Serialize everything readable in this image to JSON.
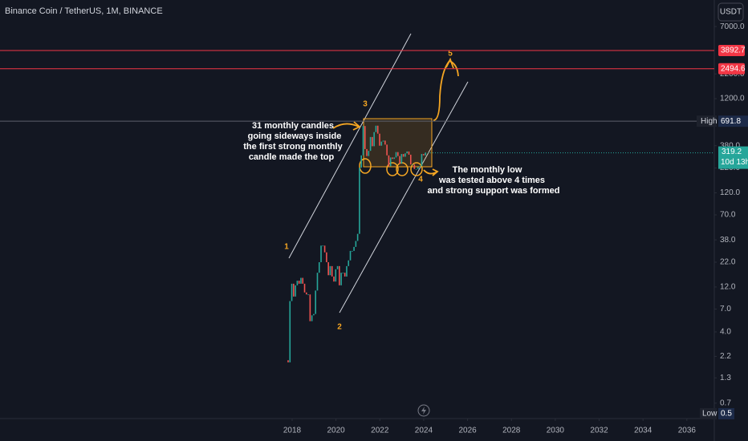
{
  "header": {
    "symbol": "Binance Coin / TetherUS, 1M, BINANCE",
    "currency": "USDT"
  },
  "chart_data": {
    "type": "candlestick",
    "log_scale": true,
    "grid": false,
    "up_color": "#26a69a",
    "down_color": "#ef5350",
    "open": [
      2.0,
      1.9,
      8.5,
      13,
      9.5,
      12.5,
      14,
      13,
      15,
      13,
      10.5,
      10,
      10,
      5.2,
      6,
      6.2,
      11,
      17,
      22,
      33,
      33,
      28,
      22,
      16,
      20,
      15.5,
      13.7,
      18.5,
      20,
      12.5,
      17,
      17,
      15.5,
      20,
      23,
      29,
      29,
      32,
      37,
      44,
      222,
      300,
      615,
      350,
      295,
      335,
      470,
      375,
      530,
      620,
      510,
      380,
      420,
      430,
      390,
      300,
      230,
      285,
      275,
      285,
      325,
      295,
      245,
      310,
      290,
      315,
      330,
      305,
      240,
      240,
      215,
      215,
      225,
      230,
      310,
      300
    ],
    "high": {
      "name": "High",
      "value": 691.8,
      "label": "691.8"
    },
    "low": {
      "name": "Low",
      "value": 0.5,
      "label": "0.5"
    },
    "close": [
      1.9,
      8.5,
      13,
      9.5,
      12.5,
      14,
      13,
      15,
      13,
      10.5,
      10,
      10,
      5.2,
      6,
      6.2,
      11,
      17,
      22,
      33,
      33,
      28,
      22,
      16,
      20,
      15.5,
      13.7,
      18.5,
      20,
      12.5,
      17,
      17,
      15.5,
      20,
      23,
      29,
      29,
      32,
      37,
      44,
      222,
      300,
      615,
      350,
      295,
      335,
      470,
      375,
      530,
      620,
      510,
      380,
      420,
      430,
      390,
      300,
      230,
      285,
      275,
      285,
      325,
      295,
      245,
      310,
      290,
      315,
      330,
      305,
      240,
      240,
      215,
      215,
      225,
      230,
      310,
      300,
      319.2
    ],
    "ylim": [
      0.5,
      13400
    ],
    "yticks": [
      {
        "value": 7000,
        "label": "7000.0"
      },
      {
        "value": 2200,
        "label": "2200.0"
      },
      {
        "value": 1200,
        "label": "1200.0"
      },
      {
        "value": 380,
        "label": "380.0"
      },
      {
        "value": 220,
        "label": "220.0"
      },
      {
        "value": 120,
        "label": "120.0"
      },
      {
        "value": 70,
        "label": "70.0"
      },
      {
        "value": 38,
        "label": "38.0"
      },
      {
        "value": 22,
        "label": "22.0"
      },
      {
        "value": 12,
        "label": "12.0"
      },
      {
        "value": 7,
        "label": "7.0"
      },
      {
        "value": 4,
        "label": "4.0"
      },
      {
        "value": 2.2,
        "label": "2.2"
      },
      {
        "value": 1.3,
        "label": "1.3"
      },
      {
        "value": 0.7,
        "label": "0.7"
      }
    ],
    "xlim": [
      2004.68,
      2037.25
    ],
    "xticks": [
      2018,
      2020,
      2022,
      2024,
      2026,
      2028,
      2030,
      2032,
      2034,
      2036
    ],
    "levels": [
      {
        "value": 3892.7,
        "label": "3892.7",
        "color": "#f23645"
      },
      {
        "value": 2494.6,
        "label": "2494.6",
        "color": "#f23645"
      }
    ],
    "last": {
      "value": 319.2,
      "label": "319.2",
      "countdown": "10d 13h"
    },
    "waves": [
      "1",
      "2",
      "3",
      "4",
      "5"
    ],
    "annotations": [
      [
        "31 monthly candles",
        "going sideways inside",
        "the first strong monthly",
        "candle made the top"
      ],
      [
        "The monthly low",
        "was tested above 4 times",
        "and strong support was formed"
      ]
    ]
  }
}
